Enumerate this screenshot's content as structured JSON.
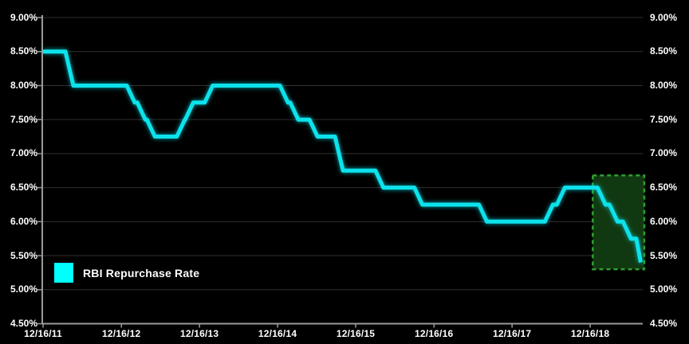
{
  "page": {
    "background": "#000000"
  },
  "chart_data": {
    "type": "line",
    "step_style": "step-after",
    "title": "",
    "line_color": "#0de2ec",
    "legend_swatch_color": "#00ffff",
    "axis_color": "#9a9a9a",
    "grid_color": "#303030",
    "label_color": "#ffffff",
    "background": "#000000",
    "y_axis": {
      "min": 4.5,
      "max": 9.0,
      "tick_step": 0.5,
      "labels_on_both_sides": true,
      "ticks": [
        {
          "value": 9.0,
          "label": "9.00%"
        },
        {
          "value": 8.5,
          "label": "8.50%"
        },
        {
          "value": 8.0,
          "label": "8.00%"
        },
        {
          "value": 7.5,
          "label": "7.50%"
        },
        {
          "value": 7.0,
          "label": "7.00%"
        },
        {
          "value": 6.5,
          "label": "6.50%"
        },
        {
          "value": 6.0,
          "label": "6.00%"
        },
        {
          "value": 5.5,
          "label": "5.50%"
        },
        {
          "value": 5.0,
          "label": "5.00%"
        },
        {
          "value": 4.5,
          "label": "4.50%"
        }
      ]
    },
    "x_axis": {
      "ticks": [
        {
          "date": "12/16/11",
          "label": "12/16/11"
        },
        {
          "date": "12/16/12",
          "label": "12/16/12"
        },
        {
          "date": "12/16/13",
          "label": "12/16/13"
        },
        {
          "date": "12/16/14",
          "label": "12/16/14"
        },
        {
          "date": "12/16/15",
          "label": "12/16/15"
        },
        {
          "date": "12/16/16",
          "label": "12/16/16"
        },
        {
          "date": "12/16/17",
          "label": "12/16/17"
        },
        {
          "date": "12/16/18",
          "label": "12/16/18"
        }
      ]
    },
    "series": [
      {
        "name": "RBI Repurchase Rate",
        "points": [
          {
            "date": "12/16/11",
            "value": 8.5
          },
          {
            "date": "4/17/12",
            "value": 8.0
          },
          {
            "date": "1/29/13",
            "value": 7.75
          },
          {
            "date": "3/19/13",
            "value": 7.5
          },
          {
            "date": "5/3/13",
            "value": 7.25
          },
          {
            "date": "9/20/13",
            "value": 7.5
          },
          {
            "date": "10/29/13",
            "value": 7.75
          },
          {
            "date": "1/28/14",
            "value": 8.0
          },
          {
            "date": "1/15/15",
            "value": 7.75
          },
          {
            "date": "3/4/15",
            "value": 7.5
          },
          {
            "date": "6/2/15",
            "value": 7.25
          },
          {
            "date": "9/29/15",
            "value": 6.75
          },
          {
            "date": "4/5/16",
            "value": 6.5
          },
          {
            "date": "10/4/16",
            "value": 6.25
          },
          {
            "date": "8/2/17",
            "value": 6.0
          },
          {
            "date": "6/6/18",
            "value": 6.25
          },
          {
            "date": "8/1/18",
            "value": 6.5
          },
          {
            "date": "2/7/19",
            "value": 6.25
          },
          {
            "date": "4/4/19",
            "value": 6.0
          },
          {
            "date": "6/6/19",
            "value": 5.75
          },
          {
            "date": "8/7/19",
            "value": 5.4
          }
        ]
      }
    ],
    "highlight_box": {
      "purpose": "recent-rate-cuts-highlight",
      "date_from": "12/28/18",
      "date_to": "8/26/19",
      "value_top": 6.68,
      "value_bottom": 5.3,
      "border_color": "#2f9e2f",
      "fill_color": "#123d12",
      "border_style": "dashed"
    }
  }
}
